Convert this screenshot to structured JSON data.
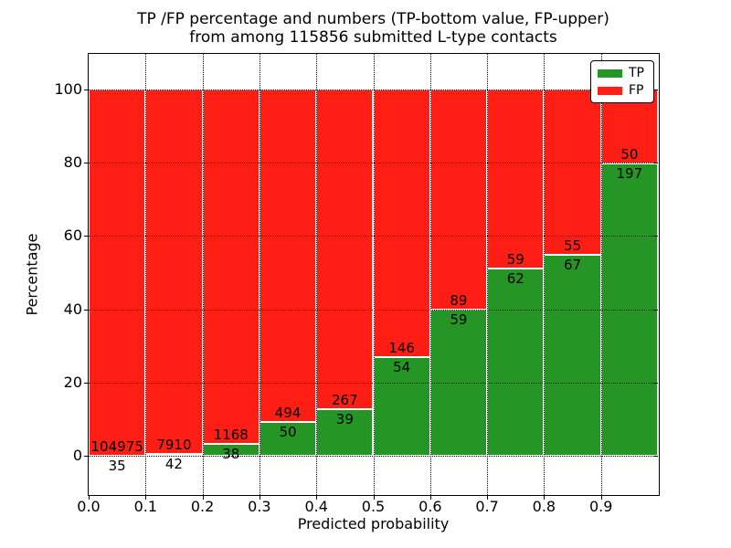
{
  "figure": {
    "title_line1": "TP /FP percentage and numbers (TP-bottom value, FP-upper)",
    "title_line2": "from among 115856 submitted L-type contacts",
    "xlabel": "Predicted probability",
    "ylabel": "Percentage"
  },
  "legend": {
    "position": "upper right",
    "items": [
      {
        "label": "TP",
        "color": "#259525"
      },
      {
        "label": "FP",
        "color": "#fe1e14"
      }
    ]
  },
  "chart_data": {
    "type": "bar",
    "subtype": "stacked-percentage",
    "title": "TP /FP percentage and numbers (TP-bottom value, FP-upper) from among 115856 submitted L-type contacts",
    "xlabel": "Predicted probability",
    "ylabel": "Percentage",
    "total_submitted_contacts": 115856,
    "bin_width": 0.1,
    "categories": [
      "0.0-0.1",
      "0.1-0.2",
      "0.2-0.3",
      "0.3-0.4",
      "0.4-0.5",
      "0.5-0.6",
      "0.6-0.7",
      "0.7-0.8",
      "0.8-0.9",
      "0.9-1.0"
    ],
    "x_ticks": [
      0.0,
      0.1,
      0.2,
      0.3,
      0.4,
      0.5,
      0.6,
      0.7,
      0.8,
      0.9
    ],
    "x_tick_labels": [
      "0.0",
      "0.1",
      "0.2",
      "0.3",
      "0.4",
      "0.5",
      "0.6",
      "0.7",
      "0.8",
      "0.9"
    ],
    "y_ticks": [
      0,
      20,
      40,
      60,
      80,
      100
    ],
    "y_tick_labels": [
      "0",
      "20",
      "40",
      "60",
      "80",
      "100"
    ],
    "xlim": [
      0.0,
      1.0
    ],
    "ylim": [
      -10.7,
      109.7
    ],
    "grid": true,
    "grid_style": "dotted",
    "legend_position": "upper right",
    "bar_edge_color": "#ffffff",
    "series": [
      {
        "name": "TP",
        "color": "#259525",
        "counts": [
          35,
          42,
          38,
          50,
          39,
          54,
          59,
          62,
          67,
          197
        ]
      },
      {
        "name": "FP",
        "color": "#fe1e14",
        "counts": [
          104975,
          7910,
          1168,
          494,
          267,
          146,
          89,
          59,
          55,
          50
        ]
      }
    ],
    "tp_percent": [
      0.03,
      0.53,
      3.15,
      9.19,
      12.75,
      27.0,
      39.86,
      51.24,
      54.92,
      79.76
    ],
    "fp_percent": [
      99.97,
      99.47,
      96.85,
      90.81,
      87.25,
      73.0,
      60.14,
      48.76,
      45.08,
      20.24
    ]
  },
  "colors": {
    "background": "#ffffff",
    "text": "#000000",
    "frame": "#000000",
    "tp_green": "#259525",
    "fp_red": "#fe1e14"
  }
}
